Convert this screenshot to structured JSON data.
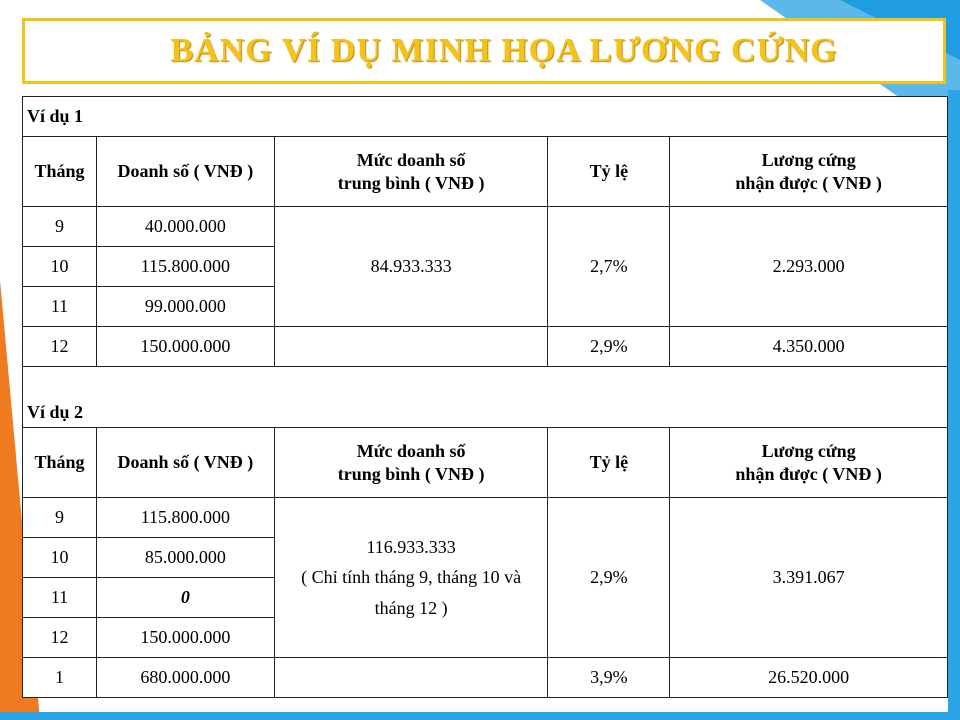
{
  "title": "BẢNG VÍ DỤ MINH HỌA LƯƠNG CỨNG",
  "headers": {
    "month": "Tháng",
    "sales": "Doanh số ( VNĐ )",
    "avg_line1": "Mức doanh số",
    "avg_line2": "trung bình ( VNĐ )",
    "rate": "Tỷ lệ",
    "salary_line1": "Lương cứng",
    "salary_line2": "nhận được ( VNĐ )"
  },
  "example1": {
    "label": "Ví dụ 1",
    "rows": [
      {
        "month": "9",
        "sales": "40.000.000"
      },
      {
        "month": "10",
        "sales": "115.800.000"
      },
      {
        "month": "11",
        "sales": "99.000.000"
      },
      {
        "month": "12",
        "sales": "150.000.000"
      }
    ],
    "group_avg": "84.933.333",
    "group_rate": "2,7%",
    "group_salary": "2.293.000",
    "last_rate": "2,9%",
    "last_salary": "4.350.000"
  },
  "example2": {
    "label": "Ví dụ 2",
    "rows": [
      {
        "month": "9",
        "sales": "115.800.000"
      },
      {
        "month": "10",
        "sales": "85.000.000"
      },
      {
        "month": "11",
        "sales": "0"
      },
      {
        "month": "12",
        "sales": "150.000.000"
      },
      {
        "month": "1",
        "sales": "680.000.000"
      }
    ],
    "group_avg_line1": "116.933.333",
    "group_avg_line2": "( Chỉ tính tháng 9, tháng 10 và",
    "group_avg_line3": "tháng 12 )",
    "group_rate": "2,9%",
    "group_salary": "3.391.067",
    "last_rate": "3,9%",
    "last_salary": "26.520.000"
  },
  "colors": {
    "title_text": "#f3c31a",
    "title_border": "#f0c419",
    "accent_blue": "#2aa6e6",
    "accent_orange": "#f07a20"
  }
}
